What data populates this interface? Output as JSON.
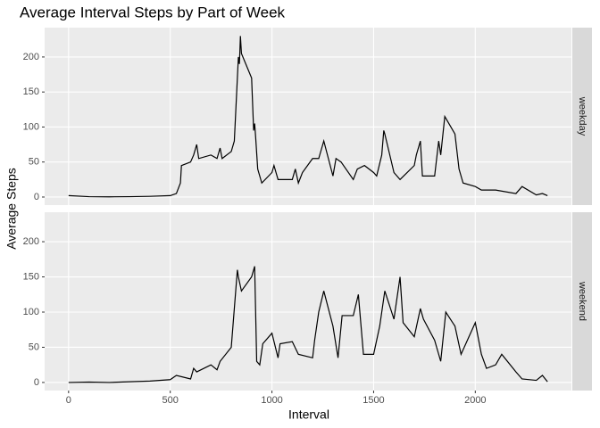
{
  "chart_data": {
    "type": "line",
    "title": "Average Interval Steps by Part of Week",
    "x_label": "Interval",
    "y_label": "Average Steps",
    "xlim": [
      -117.75,
      2472.75
    ],
    "xticks": [
      0,
      500,
      1000,
      1500,
      2000
    ],
    "ylim": [
      -11.5,
      241.9
    ],
    "yticks": [
      0,
      50,
      100,
      150,
      200
    ],
    "grid": true,
    "series": [
      {
        "name": "weekday",
        "color": "#000000",
        "x": [
          0,
          100,
          200,
          300,
          400,
          500,
          530,
          550,
          555,
          600,
          615,
          630,
          640,
          700,
          730,
          745,
          755,
          800,
          815,
          830,
          835,
          840,
          845,
          850,
          900,
          910,
          915,
          920,
          930,
          950,
          1000,
          1010,
          1030,
          1100,
          1115,
          1130,
          1150,
          1200,
          1230,
          1255,
          1300,
          1315,
          1340,
          1400,
          1420,
          1455,
          1500,
          1515,
          1540,
          1550,
          1555,
          1600,
          1630,
          1700,
          1710,
          1730,
          1740,
          1800,
          1820,
          1830,
          1850,
          1900,
          1920,
          1940,
          2000,
          2030,
          2100,
          2200,
          2230,
          2300,
          2330,
          2355
        ],
        "values": [
          2,
          0.5,
          0.3,
          0.5,
          1,
          2,
          5,
          20,
          45,
          50,
          60,
          75,
          55,
          60,
          55,
          70,
          55,
          65,
          80,
          170,
          200,
          190,
          230,
          205,
          170,
          95,
          105,
          85,
          40,
          20,
          35,
          45,
          25,
          25,
          40,
          20,
          35,
          55,
          55,
          80,
          30,
          55,
          50,
          25,
          40,
          45,
          35,
          30,
          60,
          95,
          90,
          35,
          25,
          45,
          60,
          80,
          30,
          30,
          80,
          60,
          115,
          90,
          40,
          20,
          15,
          10,
          10,
          5,
          15,
          3,
          5,
          2
        ]
      },
      {
        "name": "weekend",
        "color": "#000000",
        "x": [
          0,
          100,
          200,
          300,
          400,
          500,
          530,
          600,
          615,
          630,
          700,
          730,
          745,
          800,
          815,
          830,
          835,
          850,
          900,
          915,
          925,
          940,
          955,
          1000,
          1030,
          1040,
          1100,
          1130,
          1200,
          1210,
          1230,
          1255,
          1300,
          1325,
          1345,
          1400,
          1425,
          1450,
          1500,
          1530,
          1555,
          1600,
          1630,
          1645,
          1700,
          1730,
          1745,
          1800,
          1830,
          1855,
          1900,
          1930,
          2000,
          2030,
          2055,
          2100,
          2130,
          2200,
          2230,
          2300,
          2330,
          2355
        ],
        "values": [
          0,
          0.5,
          0,
          1,
          2,
          4,
          10,
          5,
          20,
          15,
          25,
          18,
          30,
          50,
          105,
          160,
          150,
          130,
          150,
          165,
          30,
          25,
          55,
          70,
          35,
          55,
          58,
          40,
          35,
          60,
          100,
          130,
          80,
          35,
          95,
          95,
          125,
          40,
          40,
          80,
          130,
          90,
          150,
          85,
          65,
          105,
          90,
          60,
          30,
          100,
          80,
          40,
          85,
          40,
          20,
          25,
          40,
          15,
          5,
          3,
          10,
          1
        ]
      }
    ]
  }
}
